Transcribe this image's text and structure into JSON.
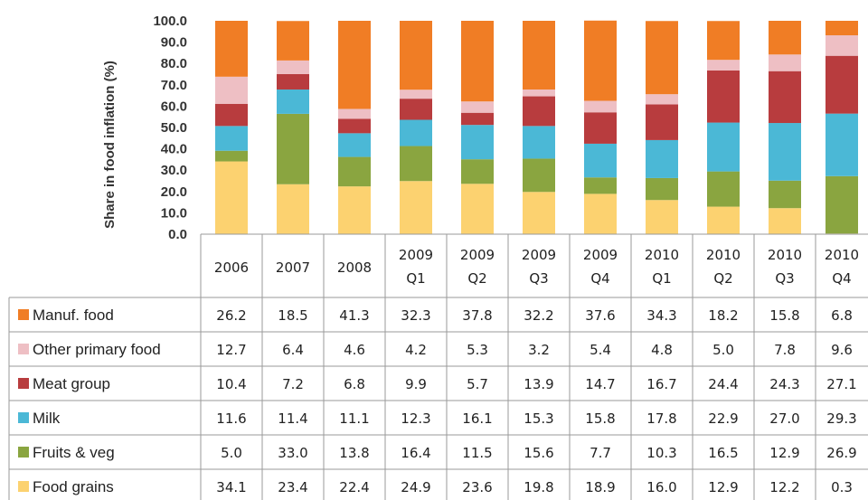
{
  "chart_data": {
    "type": "bar",
    "stacked": true,
    "ylabel": "Share in food inflation (%)",
    "ylim": [
      0,
      100
    ],
    "yticks": [
      "0.0",
      "10.0",
      "20.0",
      "30.0",
      "40.0",
      "50.0",
      "60.0",
      "70.0",
      "80.0",
      "90.0",
      "100.0"
    ],
    "categories": [
      [
        "2006"
      ],
      [
        "2007"
      ],
      [
        "2008"
      ],
      [
        "2009",
        "Q1"
      ],
      [
        "2009",
        "Q2"
      ],
      [
        "2009",
        "Q3"
      ],
      [
        "2009",
        "Q4"
      ],
      [
        "2010",
        "Q1"
      ],
      [
        "2010",
        "Q2"
      ],
      [
        "2010",
        "Q3"
      ],
      [
        "2010",
        "Q4"
      ]
    ],
    "series": [
      {
        "name": "Food grains",
        "color": "#fcd270",
        "labels": [
          "34.1",
          "23.4",
          "22.4",
          "24.9",
          "23.6",
          "19.8",
          "18.9",
          "16.0",
          "12.9",
          "12.2",
          "0.3"
        ],
        "values": [
          34.1,
          23.4,
          22.4,
          24.9,
          23.6,
          19.8,
          18.9,
          16.0,
          12.9,
          12.2,
          0.3
        ]
      },
      {
        "name": "Fruits & veg",
        "color": "#8aa540",
        "labels": [
          "5.0",
          "33.0",
          "13.8",
          "16.4",
          "11.5",
          "15.6",
          "7.7",
          "10.3",
          "16.5",
          "12.9",
          "26.9"
        ],
        "values": [
          5.0,
          33.0,
          13.8,
          16.4,
          11.5,
          15.6,
          7.7,
          10.3,
          16.5,
          12.9,
          26.9
        ]
      },
      {
        "name": "Milk",
        "color": "#4bb8d6",
        "labels": [
          "11.6",
          "11.4",
          "11.1",
          "12.3",
          "16.1",
          "15.3",
          "15.8",
          "17.8",
          "22.9",
          "27.0",
          "29.3"
        ],
        "values": [
          11.6,
          11.4,
          11.1,
          12.3,
          16.1,
          15.3,
          15.8,
          17.8,
          22.9,
          27.0,
          29.3
        ]
      },
      {
        "name": "Meat group",
        "color": "#b83c3e",
        "labels": [
          "10.4",
          "7.2",
          "6.8",
          "9.9",
          "5.7",
          "13.9",
          "14.7",
          "16.7",
          "24.4",
          "24.3",
          "27.1"
        ],
        "values": [
          10.4,
          7.2,
          6.8,
          9.9,
          5.7,
          13.9,
          14.7,
          16.7,
          24.4,
          24.3,
          27.1
        ]
      },
      {
        "name": "Other primary food",
        "color": "#eebfc4",
        "labels": [
          "12.7",
          "6.4",
          "4.6",
          "4.2",
          "5.3",
          "3.2",
          "5.4",
          "4.8",
          "5.0",
          "7.8",
          "9.6"
        ],
        "values": [
          12.7,
          6.4,
          4.6,
          4.2,
          5.3,
          3.2,
          5.4,
          4.8,
          5.0,
          7.8,
          9.6
        ]
      },
      {
        "name": "Manuf. food",
        "color": "#f07d25",
        "labels": [
          "26.2",
          "18.5",
          "41.3",
          "32.3",
          "37.8",
          "32.2",
          "37.6",
          "34.3",
          "18.2",
          "15.8",
          "6.8"
        ],
        "values": [
          26.2,
          18.5,
          41.3,
          32.3,
          37.8,
          32.2,
          37.6,
          34.3,
          18.2,
          15.8,
          6.8
        ]
      }
    ],
    "table_row_order": [
      "Manuf. food",
      "Other primary food",
      "Meat group",
      "Milk",
      "Fruits & veg",
      "Food grains"
    ],
    "grid": false,
    "legend": "data table"
  }
}
